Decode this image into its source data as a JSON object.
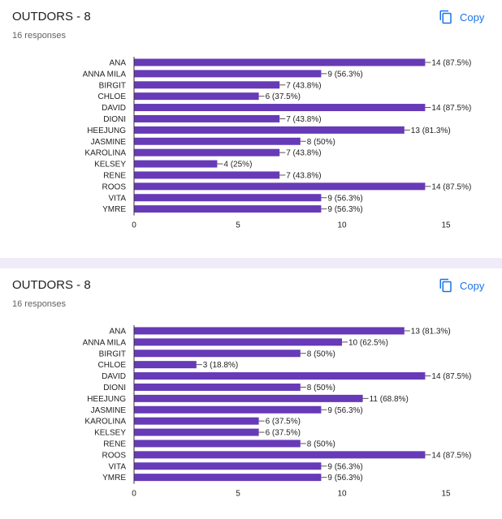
{
  "copy_icon": "copy-icon",
  "colors": {
    "bar": "#673ab7",
    "axis": "#333333",
    "text": "#222222",
    "accent": "#1a73e8",
    "separator": "#f0ebf8"
  },
  "cards": [
    {
      "title": "OUTDORS - 8",
      "responses": "16 responses",
      "copy_label": "Copy"
    },
    {
      "title": "OUTDORS - 8",
      "responses": "16 responses",
      "copy_label": "Copy"
    }
  ],
  "chart_data": [
    {
      "type": "bar",
      "orientation": "horizontal",
      "categories": [
        "ANA",
        "ANNA MILA",
        "BIRGIT",
        "CHLOE",
        "DAVID",
        "DIONI",
        "HEEJUNG",
        "JASMINE",
        "KAROLINA",
        "KELSEY",
        "RENE",
        "ROOS",
        "VITA",
        "YMRE"
      ],
      "values": [
        14,
        9,
        7,
        6,
        14,
        7,
        13,
        8,
        7,
        4,
        7,
        14,
        9,
        9
      ],
      "data_labels": [
        "14 (87.5%)",
        "9 (56.3%)",
        "7 (43.8%)",
        "6 (37.5%)",
        "14 (87.5%)",
        "7 (43.8%)",
        "13 (81.3%)",
        "8 (50%)",
        "7 (43.8%)",
        "4 (25%)",
        "7 (43.8%)",
        "14 (87.5%)",
        "9 (56.3%)",
        "9 (56.3%)"
      ],
      "xlim": [
        0,
        15
      ],
      "xticks": [
        "0",
        "5",
        "10",
        "15"
      ],
      "grid": false,
      "legend": "none",
      "color": "#673ab7"
    },
    {
      "type": "bar",
      "orientation": "horizontal",
      "categories": [
        "ANA",
        "ANNA MILA",
        "BIRGIT",
        "CHLOE",
        "DAVID",
        "DIONI",
        "HEEJUNG",
        "JASMINE",
        "KAROLINA",
        "KELSEY",
        "RENE",
        "ROOS",
        "VITA",
        "YMRE"
      ],
      "values": [
        13,
        10,
        8,
        3,
        14,
        8,
        11,
        9,
        6,
        6,
        8,
        14,
        9,
        9
      ],
      "data_labels": [
        "13 (81.3%)",
        "10 (62.5%)",
        "8 (50%)",
        "3 (18.8%)",
        "14 (87.5%)",
        "8 (50%)",
        "11 (68.8%)",
        "9 (56.3%)",
        "6 (37.5%)",
        "6 (37.5%)",
        "8 (50%)",
        "14 (87.5%)",
        "9 (56.3%)",
        "9 (56.3%)"
      ],
      "xlim": [
        0,
        15
      ],
      "xticks": [
        "0",
        "5",
        "10",
        "15"
      ],
      "grid": false,
      "legend": "none",
      "color": "#673ab7"
    }
  ]
}
